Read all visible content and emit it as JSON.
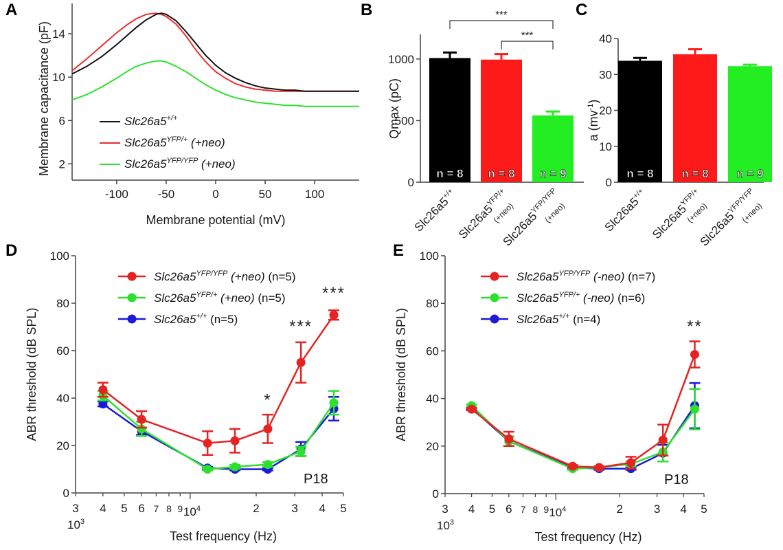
{
  "chart_data": [
    {
      "panel": "A",
      "type": "line",
      "xlabel": "Membrane potential (mV)",
      "ylabel": "Membrane capacitance (pF)",
      "xlim": [
        -145,
        145
      ],
      "ylim": [
        0.5,
        16.8
      ],
      "xticks": [
        -100,
        -50,
        0,
        50,
        100
      ],
      "yticks": [
        2,
        6,
        10,
        14
      ],
      "series": [
        {
          "name": "Slc26a5",
          "sup": "+/+",
          "suffix": "",
          "color": "#111111",
          "x": [
            -145,
            -130,
            -115,
            -100,
            -90,
            -80,
            -70,
            -60,
            -55,
            -50,
            -40,
            -30,
            -20,
            -10,
            0,
            10,
            20,
            30,
            40,
            50,
            60,
            70,
            80,
            90,
            100,
            115,
            130,
            145
          ],
          "y": [
            10.3,
            11.0,
            11.9,
            13.0,
            13.8,
            14.6,
            15.3,
            15.8,
            15.9,
            15.8,
            15.2,
            14.2,
            13.1,
            12.0,
            11.1,
            10.4,
            9.9,
            9.5,
            9.2,
            9.0,
            8.9,
            8.8,
            8.8,
            8.7,
            8.7,
            8.7,
            8.7,
            8.7
          ]
        },
        {
          "name": "Slc26a5",
          "sup": "YFP/+",
          "suffix": " (+neo)",
          "color": "#ee2b2b",
          "x": [
            -145,
            -130,
            -115,
            -100,
            -90,
            -80,
            -70,
            -60,
            -55,
            -50,
            -40,
            -30,
            -20,
            -10,
            0,
            10,
            20,
            30,
            40,
            50,
            60,
            70,
            80,
            90,
            100,
            115,
            130,
            145
          ],
          "y": [
            10.6,
            11.7,
            12.9,
            14.1,
            14.8,
            15.4,
            15.8,
            15.9,
            15.8,
            15.6,
            14.9,
            13.8,
            12.5,
            11.4,
            10.5,
            9.9,
            9.4,
            9.1,
            8.9,
            8.8,
            8.7,
            8.7,
            8.7,
            8.7,
            8.7,
            8.7,
            8.7,
            8.7
          ]
        },
        {
          "name": "Slc26a5",
          "sup": "YFP/YFP",
          "suffix": " (+neo)",
          "color": "#2ee02e",
          "x": [
            -145,
            -130,
            -115,
            -100,
            -90,
            -80,
            -70,
            -60,
            -55,
            -50,
            -40,
            -30,
            -20,
            -10,
            0,
            10,
            20,
            30,
            40,
            50,
            60,
            70,
            80,
            90,
            100,
            115,
            130,
            145
          ],
          "y": [
            7.9,
            8.4,
            9.1,
            9.9,
            10.5,
            11.0,
            11.3,
            11.5,
            11.5,
            11.4,
            11.0,
            10.5,
            9.9,
            9.3,
            8.8,
            8.4,
            8.1,
            7.9,
            7.7,
            7.6,
            7.5,
            7.4,
            7.4,
            7.3,
            7.3,
            7.3,
            7.3,
            7.3
          ]
        }
      ],
      "legend": "bottom-left"
    },
    {
      "panel": "B",
      "type": "bar",
      "ylabel": "Qmax (pC)",
      "ylim": [
        0,
        1200
      ],
      "yticks": [
        0,
        500,
        1000
      ],
      "categories": [
        {
          "base": "Slc26a5",
          "sup": "+/+",
          "extra": ""
        },
        {
          "base": "Slc26a5",
          "sup": "YFP/+",
          "extra": "(+neo)"
        },
        {
          "base": "Slc26a5",
          "sup": "YFP/YFP",
          "extra": "(+neo)"
        }
      ],
      "values": [
        1008,
        995,
        542
      ],
      "errors": [
        45,
        45,
        32
      ],
      "colors": [
        "#000000",
        "#ff1a1a",
        "#22ee22"
      ],
      "n_labels": [
        "n = 8",
        "n = 8",
        "n = 9"
      ],
      "significance": [
        {
          "from": 0,
          "to": 2,
          "label": "***"
        },
        {
          "from": 1,
          "to": 2,
          "label": "***"
        }
      ]
    },
    {
      "panel": "C",
      "type": "bar",
      "ylabel_base": "a (mv",
      "ylabel_sup": "-1",
      "ylabel_end": ")",
      "ylim": [
        0,
        40
      ],
      "yticks": [
        0,
        10,
        20,
        30,
        40
      ],
      "categories": [
        {
          "base": "Slc26a5",
          "sup": "+/+",
          "extra": ""
        },
        {
          "base": "Slc26a5",
          "sup": "YFP/+",
          "extra": "(+neo)"
        },
        {
          "base": "Slc26a5",
          "sup": "YFP/YFP",
          "extra": "(+neo)"
        }
      ],
      "values": [
        33.8,
        35.6,
        32.3
      ],
      "errors": [
        0.8,
        1.4,
        0.4
      ],
      "colors": [
        "#000000",
        "#ff1a1a",
        "#22ee22"
      ],
      "n_labels": [
        "n = 8",
        "n = 8",
        "n = 9"
      ]
    },
    {
      "panel": "D",
      "type": "line",
      "xlabel": "Test frequency (Hz)",
      "ylabel": "ABR threshold (dB SPL)",
      "xscale": "log",
      "xlim": [
        3000,
        50000
      ],
      "ylim": [
        0,
        100
      ],
      "yticks": [
        0,
        20,
        40,
        60,
        80,
        100
      ],
      "annotation": "P18",
      "x": [
        4000,
        6000,
        12000,
        16000,
        22600,
        32000,
        45200
      ],
      "series": [
        {
          "name": "Slc26a5",
          "sup": "+/+",
          "suffix": " ",
          "n": "(n=5)",
          "color": "#1a1adb",
          "y": [
            37.5,
            26,
            10.5,
            10,
            10,
            18.5,
            35.5
          ],
          "err": [
            1,
            1.5,
            0.5,
            0.5,
            0.5,
            3,
            5
          ]
        },
        {
          "name": "Slc26a5",
          "sup": "YFP/+",
          "suffix": " (+neo)",
          "n": "(n=5)",
          "color": "#2ee02e",
          "y": [
            41,
            27,
            10,
            11,
            12,
            17.5,
            38
          ],
          "err": [
            2,
            3,
            0.5,
            0.8,
            1,
            2,
            5
          ]
        },
        {
          "name": "Slc26a5",
          "sup": "YFP/YFP",
          "suffix": " (+neo)",
          "n": "(n=5)",
          "color": "#e62222",
          "y": [
            43.5,
            31,
            21,
            22,
            27,
            55,
            75
          ],
          "err": [
            3,
            3.5,
            5,
            5,
            6,
            8.5,
            2
          ]
        }
      ],
      "significance": [
        {
          "x": 22600,
          "y": 37,
          "label": "*"
        },
        {
          "x": 32000,
          "y": 68,
          "label": "***"
        },
        {
          "x": 45200,
          "y": 82,
          "label": "***"
        }
      ]
    },
    {
      "panel": "E",
      "type": "line",
      "xlabel": "Test frequency (Hz)",
      "ylabel": "ABR threshold (dB SPL)",
      "xscale": "log",
      "xlim": [
        3000,
        50000
      ],
      "ylim": [
        0,
        100
      ],
      "yticks": [
        0,
        20,
        40,
        60,
        80,
        100
      ],
      "annotation": "P18",
      "x": [
        4000,
        6000,
        12000,
        16000,
        22600,
        32000,
        45200
      ],
      "series": [
        {
          "name": "Slc26a5",
          "sup": "+/+",
          "suffix": "   ",
          "n": "(n=4)",
          "color": "#1a1adb",
          "y": [
            36,
            22,
            11,
            10.5,
            10.5,
            17,
            37
          ],
          "err": [
            0.5,
            2,
            0.5,
            0.5,
            0.5,
            3.5,
            9.5
          ]
        },
        {
          "name": "Slc26a5",
          "sup": "YFP/+",
          "suffix": "  (-neo)",
          "n": "(n=6)",
          "color": "#2ee02e",
          "y": [
            37,
            22,
            10.5,
            11,
            12.5,
            17.5,
            35.5
          ],
          "err": [
            0.5,
            2,
            0.5,
            0.5,
            1,
            4,
            8.5
          ]
        },
        {
          "name": "Slc26a5",
          "sup": "YFP/YFP",
          "suffix": " (-neo)",
          "n": "(n=7)",
          "color": "#e62222",
          "y": [
            35.5,
            23,
            11.5,
            11,
            13,
            22.5,
            58.5
          ],
          "err": [
            0.5,
            3,
            0.5,
            0.5,
            2.5,
            6.5,
            5.5
          ]
        }
      ],
      "significance": [
        {
          "x": 45200,
          "y": 68,
          "label": "**"
        }
      ]
    }
  ],
  "panel_letters": [
    "A",
    "B",
    "C",
    "D",
    "E"
  ],
  "freq_tick_labels": [
    "3",
    "4",
    "5",
    "6",
    "7",
    "8",
    "9",
    "10",
    "2",
    "3",
    "4",
    "5"
  ],
  "freq_decade_labels": [
    "10",
    "3",
    "10",
    "4"
  ]
}
